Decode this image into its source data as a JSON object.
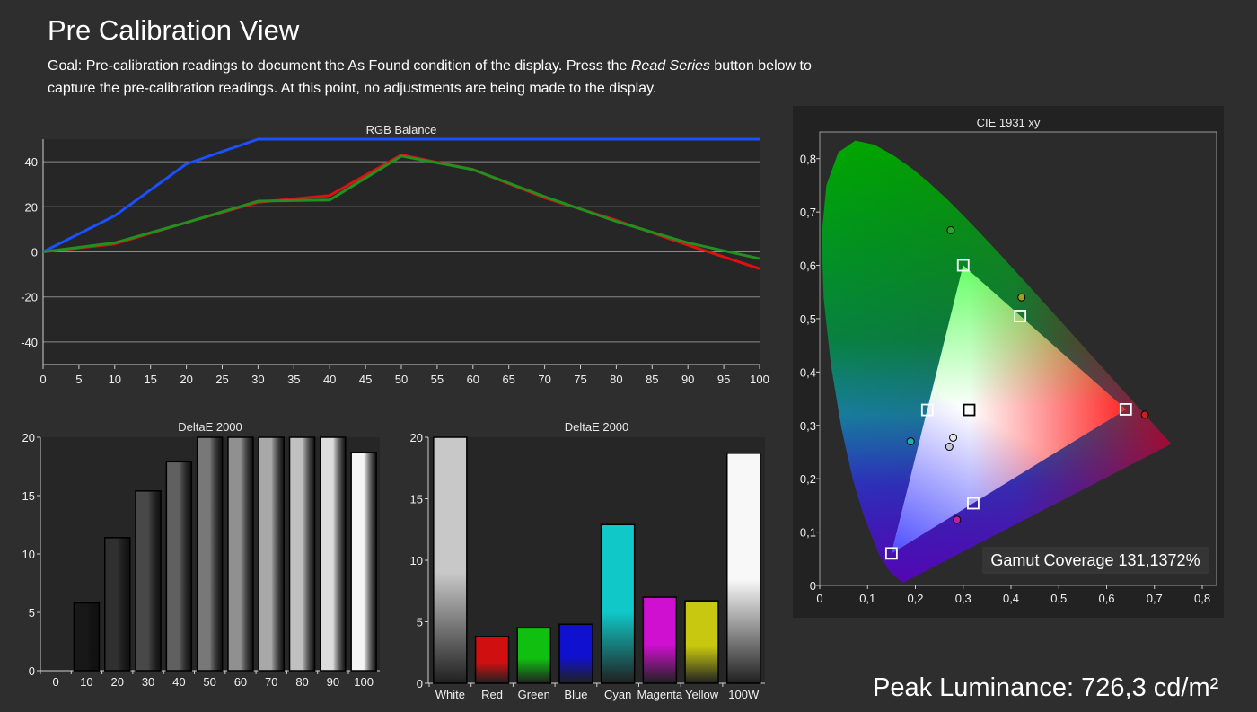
{
  "page": {
    "title": "Pre Calibration View",
    "goal_prefix": "Goal: Pre-calibration readings to document the As Found condition of the display. Press the ",
    "goal_button": "Read Series",
    "goal_suffix": " button below to capture the pre-calibration readings. At this point, no adjustments are being made to the display.",
    "peak_luminance": "Peak Luminance: 726,3 cd/m²",
    "gamut_coverage": "Gamut Coverage 131,1372%"
  },
  "chart_data": [
    {
      "id": "rgb",
      "type": "line",
      "title": "RGB Balance",
      "x": [
        0,
        10,
        20,
        30,
        40,
        50,
        60,
        70,
        80,
        90,
        100
      ],
      "xticks": [
        "0",
        "5",
        "10",
        "15",
        "20",
        "25",
        "30",
        "35",
        "40",
        "45",
        "50",
        "55",
        "60",
        "65",
        "70",
        "75",
        "80",
        "85",
        "90",
        "95",
        "100"
      ],
      "yticks": [
        "40",
        "20",
        "0",
        "-20",
        "-40"
      ],
      "xlim": [
        0,
        100
      ],
      "ylim": [
        -50,
        50
      ],
      "grid": true,
      "series": [
        {
          "color": "#e01010",
          "values": [
            0,
            3.5,
            13,
            22,
            25,
            43,
            36.5,
            24,
            14,
            3,
            -7.5
          ]
        },
        {
          "color": "#1a50ff",
          "values": [
            0,
            16,
            39,
            50,
            50,
            50,
            50,
            50,
            50,
            50,
            50
          ]
        },
        {
          "color": "#209020",
          "values": [
            0,
            4,
            13,
            22.5,
            23,
            42.5,
            36.5,
            24.5,
            13.5,
            4,
            -3
          ]
        }
      ]
    },
    {
      "id": "grayscale",
      "type": "bar",
      "title": "DeltaE 2000",
      "categories": [
        "0",
        "10",
        "20",
        "30",
        "40",
        "50",
        "60",
        "70",
        "80",
        "90",
        "100"
      ],
      "values": [
        0,
        5.8,
        11.4,
        15.4,
        17.9,
        20,
        20,
        20,
        20,
        20,
        18.7
      ],
      "colors": [
        "#000000",
        "#181818",
        "#303030",
        "#484848",
        "#606060",
        "#787878",
        "#909090",
        "#a8a8a8",
        "#c0c0c0",
        "#dcdcdc",
        "#f5f5f5"
      ],
      "yticks": [
        "20",
        "15",
        "10",
        "5",
        "0"
      ],
      "ylim": [
        0,
        20
      ]
    },
    {
      "id": "colors",
      "type": "bar",
      "title": "DeltaE 2000",
      "categories": [
        "White",
        "Red",
        "Green",
        "Blue",
        "Cyan",
        "Magenta",
        "Yellow",
        "100W"
      ],
      "values": [
        20,
        3.8,
        4.5,
        4.8,
        12.9,
        7.0,
        6.7,
        18.7
      ],
      "colors": [
        "#c8c8c8",
        "#d01010",
        "#10c010",
        "#1010d0",
        "#10c8c8",
        "#d010d0",
        "#c8c810",
        "#f8f8f8"
      ],
      "yticks": [
        "20",
        "15",
        "10",
        "5",
        "0"
      ],
      "ylim": [
        0,
        20
      ]
    },
    {
      "id": "cie",
      "type": "scatter",
      "title": "CIE 1931 xy",
      "xticks": [
        "0",
        "0,1",
        "0,2",
        "0,3",
        "0,4",
        "0,5",
        "0,6",
        "0,7",
        "0,8"
      ],
      "yticks": [
        "0,8",
        "0,7",
        "0,6",
        "0,5",
        "0,4",
        "0,3",
        "0,2",
        "0,1",
        "0"
      ],
      "xlim": [
        0,
        0.83
      ],
      "ylim": [
        0,
        0.85
      ],
      "targets": [
        {
          "name": "red",
          "x": 0.64,
          "y": 0.33
        },
        {
          "name": "green",
          "x": 0.3,
          "y": 0.6
        },
        {
          "name": "blue",
          "x": 0.15,
          "y": 0.06
        },
        {
          "name": "cyan",
          "x": 0.225,
          "y": 0.329
        },
        {
          "name": "magenta",
          "x": 0.321,
          "y": 0.154
        },
        {
          "name": "yellow",
          "x": 0.419,
          "y": 0.505
        },
        {
          "name": "white",
          "x": 0.3127,
          "y": 0.329
        }
      ],
      "measured": [
        {
          "name": "red",
          "x": 0.68,
          "y": 0.32,
          "color": "#cc2020"
        },
        {
          "name": "green",
          "x": 0.274,
          "y": 0.666,
          "color": "#30a030"
        },
        {
          "name": "cyan",
          "x": 0.19,
          "y": 0.27,
          "color": "#20b0b0"
        },
        {
          "name": "magenta",
          "x": 0.287,
          "y": 0.123,
          "color": "#c020a0"
        },
        {
          "name": "yellow",
          "x": 0.422,
          "y": 0.54,
          "color": "#a0a020"
        },
        {
          "name": "white",
          "x": 0.279,
          "y": 0.277,
          "color": "#e8e8e8"
        },
        {
          "name": "white-2",
          "x": 0.271,
          "y": 0.26,
          "color": "#c8c8d8"
        }
      ]
    }
  ]
}
